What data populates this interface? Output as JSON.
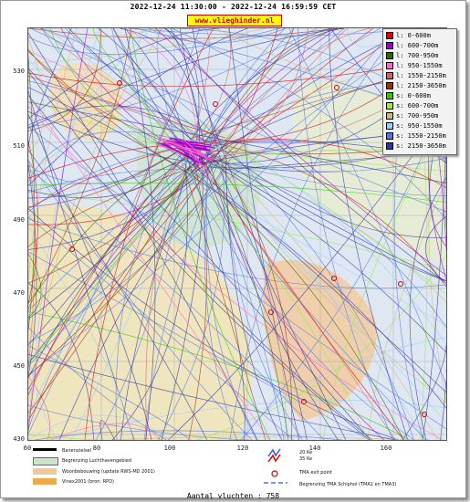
{
  "header": {
    "time_range": "2022-12-24 11:30:00 - 2022-12-24 16:59:59 CET",
    "website": "www.vlieghinder.nl"
  },
  "axes": {
    "y_ticks": [
      "530",
      "510",
      "490",
      "470",
      "450",
      "430"
    ],
    "x_ticks": [
      "60",
      "80",
      "100",
      "120",
      "140",
      "160"
    ]
  },
  "legend": {
    "items": [
      {
        "label": "l: 0-600m",
        "color": "#dd0000"
      },
      {
        "label": "l: 600-700m",
        "color": "#9900cc"
      },
      {
        "label": "l: 700-950m",
        "color": "#336600"
      },
      {
        "label": "l: 950-1550m",
        "color": "#ff66cc"
      },
      {
        "label": "l: 1550-2150m",
        "color": "#cc6666"
      },
      {
        "label": "l: 2150-3650m",
        "color": "#993300"
      },
      {
        "label": "s: 0-600m",
        "color": "#33cc00"
      },
      {
        "label": "s: 600-700m",
        "color": "#99ee33"
      },
      {
        "label": "s: 700-950m",
        "color": "#ccbb77"
      },
      {
        "label": "s: 950-1550m",
        "color": "#99ccff"
      },
      {
        "label": "s: 1550-2150m",
        "color": "#5577dd"
      },
      {
        "label": "s: 2150-3650m",
        "color": "#333399"
      }
    ]
  },
  "key": {
    "items": [
      {
        "label": "Banenstelsel"
      },
      {
        "label": "Begrenzing Luchthavengebied"
      },
      {
        "label": "Woonbebouwing (update RWS-MD 2001)"
      },
      {
        "label": "Vinex2001 (bron: RPD)"
      }
    ],
    "noise_lines": [
      "20 Ke",
      "35 Ke"
    ],
    "tma_exit": "TMA exit point",
    "tma_boundary": "Begrenzing TMA Schiphol  (TMA1 en TMA3)"
  },
  "footer": {
    "flight_count": "Aantal vluchten : 758"
  }
}
